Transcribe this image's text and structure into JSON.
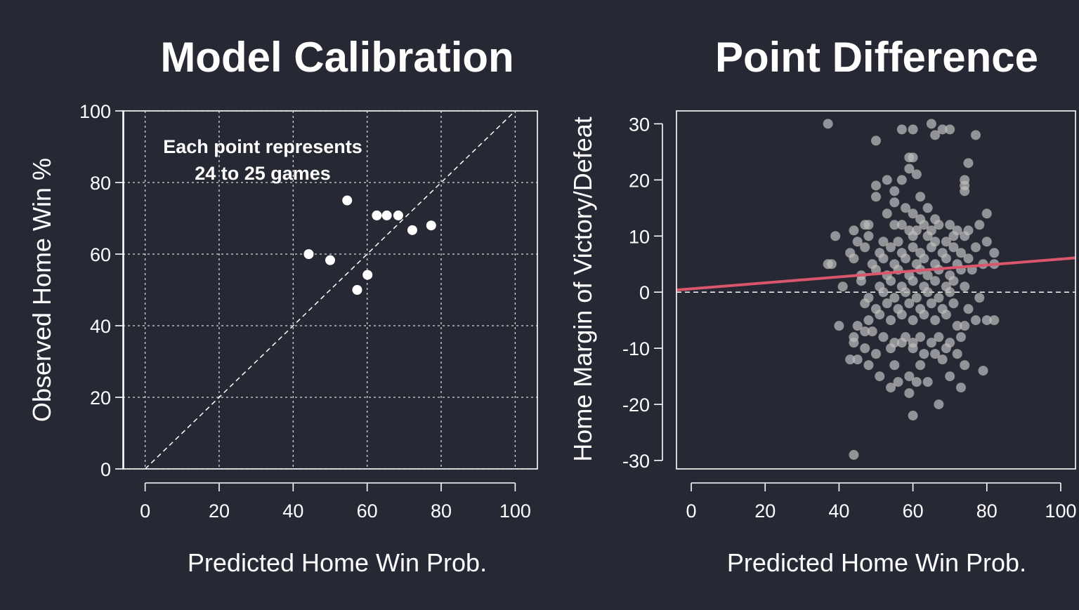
{
  "colors": {
    "background": "#262833",
    "foreground": "#ffffff",
    "grid": "#d8d8d8",
    "regression_line": "#d9566c",
    "scatter_point": "#bdbdbd"
  },
  "chart_data": [
    {
      "type": "scatter",
      "title": "Model Calibration",
      "xlabel": "Predicted Home Win Prob.",
      "ylabel": "Observed Home Win %",
      "xlim": [
        -6,
        106
      ],
      "ylim": [
        0,
        100
      ],
      "xticks": [
        0,
        20,
        40,
        60,
        80,
        100
      ],
      "yticks": [
        0,
        20,
        40,
        60,
        80,
        100
      ],
      "grid": true,
      "reference_line": "y = x (dashed)",
      "annotation": [
        "Each point represents",
        "24 to 25 games"
      ],
      "points": [
        {
          "x": 44.2,
          "y": 60.0
        },
        {
          "x": 50.0,
          "y": 58.3
        },
        {
          "x": 54.6,
          "y": 75.0
        },
        {
          "x": 57.3,
          "y": 50.0
        },
        {
          "x": 60.1,
          "y": 54.2
        },
        {
          "x": 62.6,
          "y": 70.8
        },
        {
          "x": 65.3,
          "y": 70.8
        },
        {
          "x": 68.4,
          "y": 70.8
        },
        {
          "x": 72.2,
          "y": 66.7
        },
        {
          "x": 77.3,
          "y": 68.0
        }
      ]
    },
    {
      "type": "scatter",
      "title": "Point Difference",
      "xlabel": "Predicted Home Win Prob.",
      "ylabel": "Home Margin of Victory/Defeat",
      "xlim": [
        -4,
        104
      ],
      "ylim": [
        -31.5,
        32.3
      ],
      "xticks": [
        0,
        20,
        40,
        60,
        80,
        100
      ],
      "yticks": [
        -30,
        -20,
        -10,
        0,
        10,
        20,
        30
      ],
      "grid": false,
      "zero_line": "y = 0 (dashed)",
      "regression_line": {
        "intercept": 0.6,
        "slope": 0.053
      },
      "points": [
        {
          "x": 37,
          "y": 30
        },
        {
          "x": 50,
          "y": 27
        },
        {
          "x": 57,
          "y": 29
        },
        {
          "x": 60,
          "y": 29
        },
        {
          "x": 65,
          "y": 30
        },
        {
          "x": 66,
          "y": 28
        },
        {
          "x": 68,
          "y": 29
        },
        {
          "x": 70,
          "y": 29
        },
        {
          "x": 77,
          "y": 28
        },
        {
          "x": 59,
          "y": 24
        },
        {
          "x": 60,
          "y": 24
        },
        {
          "x": 59,
          "y": 22
        },
        {
          "x": 61,
          "y": 21
        },
        {
          "x": 75,
          "y": 23
        },
        {
          "x": 50,
          "y": 19
        },
        {
          "x": 53,
          "y": 20
        },
        {
          "x": 55,
          "y": 18
        },
        {
          "x": 57,
          "y": 20
        },
        {
          "x": 74,
          "y": 20
        },
        {
          "x": 74,
          "y": 19
        },
        {
          "x": 74,
          "y": 18
        },
        {
          "x": 50,
          "y": 17
        },
        {
          "x": 55,
          "y": 16
        },
        {
          "x": 62,
          "y": 17
        },
        {
          "x": 64,
          "y": 15
        },
        {
          "x": 53,
          "y": 14
        },
        {
          "x": 58,
          "y": 15
        },
        {
          "x": 60,
          "y": 14
        },
        {
          "x": 62,
          "y": 13
        },
        {
          "x": 66,
          "y": 13
        },
        {
          "x": 80,
          "y": 14
        },
        {
          "x": 44,
          "y": 11
        },
        {
          "x": 47,
          "y": 12
        },
        {
          "x": 48,
          "y": 12
        },
        {
          "x": 55,
          "y": 12
        },
        {
          "x": 57,
          "y": 12
        },
        {
          "x": 59,
          "y": 11
        },
        {
          "x": 61,
          "y": 11
        },
        {
          "x": 63,
          "y": 12
        },
        {
          "x": 65,
          "y": 11
        },
        {
          "x": 67,
          "y": 12
        },
        {
          "x": 70,
          "y": 12
        },
        {
          "x": 72,
          "y": 11
        },
        {
          "x": 75,
          "y": 11
        },
        {
          "x": 78,
          "y": 12
        },
        {
          "x": 39,
          "y": 10
        },
        {
          "x": 45,
          "y": 9
        },
        {
          "x": 48,
          "y": 10
        },
        {
          "x": 52,
          "y": 9
        },
        {
          "x": 56,
          "y": 9
        },
        {
          "x": 60,
          "y": 10
        },
        {
          "x": 64,
          "y": 10
        },
        {
          "x": 66,
          "y": 9
        },
        {
          "x": 69,
          "y": 9
        },
        {
          "x": 71,
          "y": 10
        },
        {
          "x": 74,
          "y": 10
        },
        {
          "x": 80,
          "y": 9
        },
        {
          "x": 43,
          "y": 7
        },
        {
          "x": 47,
          "y": 8
        },
        {
          "x": 51,
          "y": 7
        },
        {
          "x": 54,
          "y": 8
        },
        {
          "x": 57,
          "y": 7
        },
        {
          "x": 60,
          "y": 8
        },
        {
          "x": 62,
          "y": 7
        },
        {
          "x": 65,
          "y": 8
        },
        {
          "x": 68,
          "y": 7
        },
        {
          "x": 71,
          "y": 8
        },
        {
          "x": 73,
          "y": 7
        },
        {
          "x": 77,
          "y": 8
        },
        {
          "x": 82,
          "y": 7
        },
        {
          "x": 37,
          "y": 5
        },
        {
          "x": 38,
          "y": 5
        },
        {
          "x": 44,
          "y": 6
        },
        {
          "x": 49,
          "y": 5
        },
        {
          "x": 52,
          "y": 6
        },
        {
          "x": 55,
          "y": 5
        },
        {
          "x": 58,
          "y": 6
        },
        {
          "x": 61,
          "y": 5
        },
        {
          "x": 63,
          "y": 6
        },
        {
          "x": 66,
          "y": 5
        },
        {
          "x": 69,
          "y": 6
        },
        {
          "x": 72,
          "y": 5
        },
        {
          "x": 75,
          "y": 6
        },
        {
          "x": 79,
          "y": 5
        },
        {
          "x": 82,
          "y": 5
        },
        {
          "x": 46,
          "y": 3
        },
        {
          "x": 50,
          "y": 4
        },
        {
          "x": 53,
          "y": 3
        },
        {
          "x": 56,
          "y": 4
        },
        {
          "x": 59,
          "y": 3
        },
        {
          "x": 62,
          "y": 4
        },
        {
          "x": 64,
          "y": 3
        },
        {
          "x": 67,
          "y": 4
        },
        {
          "x": 70,
          "y": 3
        },
        {
          "x": 73,
          "y": 4
        },
        {
          "x": 76,
          "y": 4
        },
        {
          "x": 41,
          "y": 1
        },
        {
          "x": 46,
          "y": 2
        },
        {
          "x": 51,
          "y": 1
        },
        {
          "x": 54,
          "y": 2
        },
        {
          "x": 57,
          "y": 1
        },
        {
          "x": 60,
          "y": 2
        },
        {
          "x": 63,
          "y": 1
        },
        {
          "x": 66,
          "y": 2
        },
        {
          "x": 69,
          "y": 1
        },
        {
          "x": 71,
          "y": 2
        },
        {
          "x": 74,
          "y": 1
        },
        {
          "x": 48,
          "y": -1
        },
        {
          "x": 52,
          "y": 0
        },
        {
          "x": 55,
          "y": -1
        },
        {
          "x": 58,
          "y": 0
        },
        {
          "x": 61,
          "y": -1
        },
        {
          "x": 64,
          "y": 0
        },
        {
          "x": 67,
          "y": -1
        },
        {
          "x": 70,
          "y": 0
        },
        {
          "x": 47,
          "y": -2
        },
        {
          "x": 50,
          "y": -3
        },
        {
          "x": 53,
          "y": -2
        },
        {
          "x": 56,
          "y": -3
        },
        {
          "x": 59,
          "y": -2
        },
        {
          "x": 62,
          "y": -3
        },
        {
          "x": 65,
          "y": -2
        },
        {
          "x": 68,
          "y": -3
        },
        {
          "x": 71,
          "y": -2
        },
        {
          "x": 75,
          "y": -3
        },
        {
          "x": 78,
          "y": -1
        },
        {
          "x": 40,
          "y": -6
        },
        {
          "x": 45,
          "y": -6
        },
        {
          "x": 48,
          "y": -5
        },
        {
          "x": 51,
          "y": -4
        },
        {
          "x": 54,
          "y": -5
        },
        {
          "x": 57,
          "y": -4
        },
        {
          "x": 60,
          "y": -5
        },
        {
          "x": 63,
          "y": -4
        },
        {
          "x": 66,
          "y": -5
        },
        {
          "x": 69,
          "y": -4
        },
        {
          "x": 72,
          "y": -6
        },
        {
          "x": 74,
          "y": -6
        },
        {
          "x": 77,
          "y": -5
        },
        {
          "x": 80,
          "y": -5
        },
        {
          "x": 82,
          "y": -5
        },
        {
          "x": 44,
          "y": -8
        },
        {
          "x": 47,
          "y": -7
        },
        {
          "x": 49,
          "y": -7
        },
        {
          "x": 52,
          "y": -8
        },
        {
          "x": 55,
          "y": -9
        },
        {
          "x": 58,
          "y": -8
        },
        {
          "x": 60,
          "y": -9
        },
        {
          "x": 62,
          "y": -8
        },
        {
          "x": 65,
          "y": -9
        },
        {
          "x": 67,
          "y": -8
        },
        {
          "x": 70,
          "y": -9
        },
        {
          "x": 73,
          "y": -8
        },
        {
          "x": 44,
          "y": -9
        },
        {
          "x": 47,
          "y": -10
        },
        {
          "x": 50,
          "y": -11
        },
        {
          "x": 54,
          "y": -10
        },
        {
          "x": 57,
          "y": -9
        },
        {
          "x": 60,
          "y": -10
        },
        {
          "x": 63,
          "y": -11
        },
        {
          "x": 66,
          "y": -11
        },
        {
          "x": 69,
          "y": -10
        },
        {
          "x": 72,
          "y": -11
        },
        {
          "x": 43,
          "y": -12
        },
        {
          "x": 45,
          "y": -12
        },
        {
          "x": 48,
          "y": -13
        },
        {
          "x": 55,
          "y": -13
        },
        {
          "x": 62,
          "y": -13
        },
        {
          "x": 68,
          "y": -12
        },
        {
          "x": 74,
          "y": -13
        },
        {
          "x": 79,
          "y": -14
        },
        {
          "x": 51,
          "y": -15
        },
        {
          "x": 56,
          "y": -16
        },
        {
          "x": 59,
          "y": -15
        },
        {
          "x": 61,
          "y": -16
        },
        {
          "x": 64,
          "y": -16
        },
        {
          "x": 70,
          "y": -15
        },
        {
          "x": 73,
          "y": -17
        },
        {
          "x": 54,
          "y": -17
        },
        {
          "x": 59,
          "y": -18
        },
        {
          "x": 67,
          "y": -20
        },
        {
          "x": 60,
          "y": -22
        },
        {
          "x": 44,
          "y": -29
        }
      ]
    }
  ]
}
